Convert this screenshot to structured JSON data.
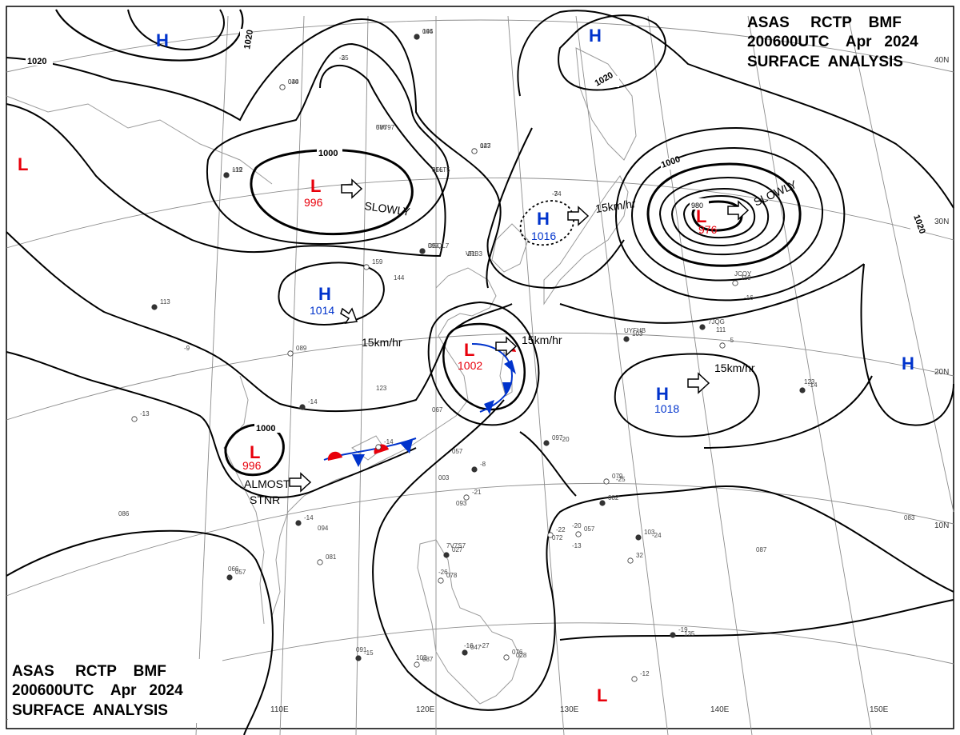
{
  "header": {
    "top_right": {
      "line1": "ASAS     RCTP    BMF",
      "line2": "200600UTC    Apr   2024",
      "line3": "SURFACE  ANALYSIS"
    },
    "bottom_left": {
      "line1": "ASAS     RCTP    BMF",
      "line2": "200600UTC    Apr   2024",
      "line3": "SURFACE  ANALYSIS"
    }
  },
  "colors": {
    "low": "#e8000b",
    "high": "#0033cc",
    "isobar": "#000000",
    "coast": "#9a9a9a",
    "grid": "#8c8c8c"
  },
  "grid_labels": {
    "longitudes": [
      "110E",
      "120E",
      "130E",
      "140E",
      "150E"
    ],
    "latitudes": [
      "40N",
      "30N",
      "20N",
      "10N"
    ]
  },
  "pressure_systems": [
    {
      "type": "H",
      "value": ""
    },
    {
      "type": "H",
      "value": ""
    },
    {
      "type": "H",
      "value": ""
    },
    {
      "type": "H",
      "value": "1016"
    },
    {
      "type": "H",
      "value": "1014"
    },
    {
      "type": "H",
      "value": "1018"
    },
    {
      "type": "L",
      "value": "996"
    },
    {
      "type": "L",
      "value": "976"
    },
    {
      "type": "L",
      "value": "1002"
    },
    {
      "type": "L",
      "value": "996"
    },
    {
      "type": "L",
      "value": ""
    },
    {
      "type": "L",
      "value": ""
    }
  ],
  "motion_labels": {
    "slowly_1": "SLOWLY",
    "slowly_2": "SLOWLY",
    "speed_1": "15km/hr",
    "speed_2": "15km/hr",
    "speed_3": "15km/hr",
    "speed_4": "15km/hr",
    "almost": "ALMOST",
    "stnr": "STNR"
  },
  "isobar_labels": [
    "1020",
    "1020",
    "1020",
    "1020",
    "1000",
    "1000",
    "1000",
    "980"
  ],
  "station_samples": [
    "095",
    "-25",
    "034",
    "086",
    "+12",
    "016",
    "043",
    "-34",
    "093",
    "-21",
    "159",
    "144",
    "113",
    "-9",
    "089",
    "123",
    "-14",
    "067",
    "-14",
    "057",
    "-8",
    "003",
    "-21",
    "093",
    "-14",
    "094",
    "081",
    "066",
    "057",
    "086",
    "-13",
    "091",
    "-15",
    "102",
    "087",
    "7V7S7",
    "027",
    "-26",
    "078",
    "-16",
    "047",
    "-27",
    "076",
    "028",
    "097",
    "-20",
    "079",
    "-25",
    "082",
    "-20",
    "057",
    "-13",
    "103",
    "-24",
    "32",
    "087",
    "-19",
    "135",
    "-12",
    "123",
    "-14",
    "JCOY",
    "119",
    "-16",
    "7JQG",
    "111",
    "-5",
    "UYFHB",
    "103",
    "083",
    "-22",
    "072",
    "144",
    "-3",
    "040",
    "5V797",
    "119",
    "3FLT5",
    "127",
    "-7",
    "DSQL7",
    "VRB3"
  ]
}
